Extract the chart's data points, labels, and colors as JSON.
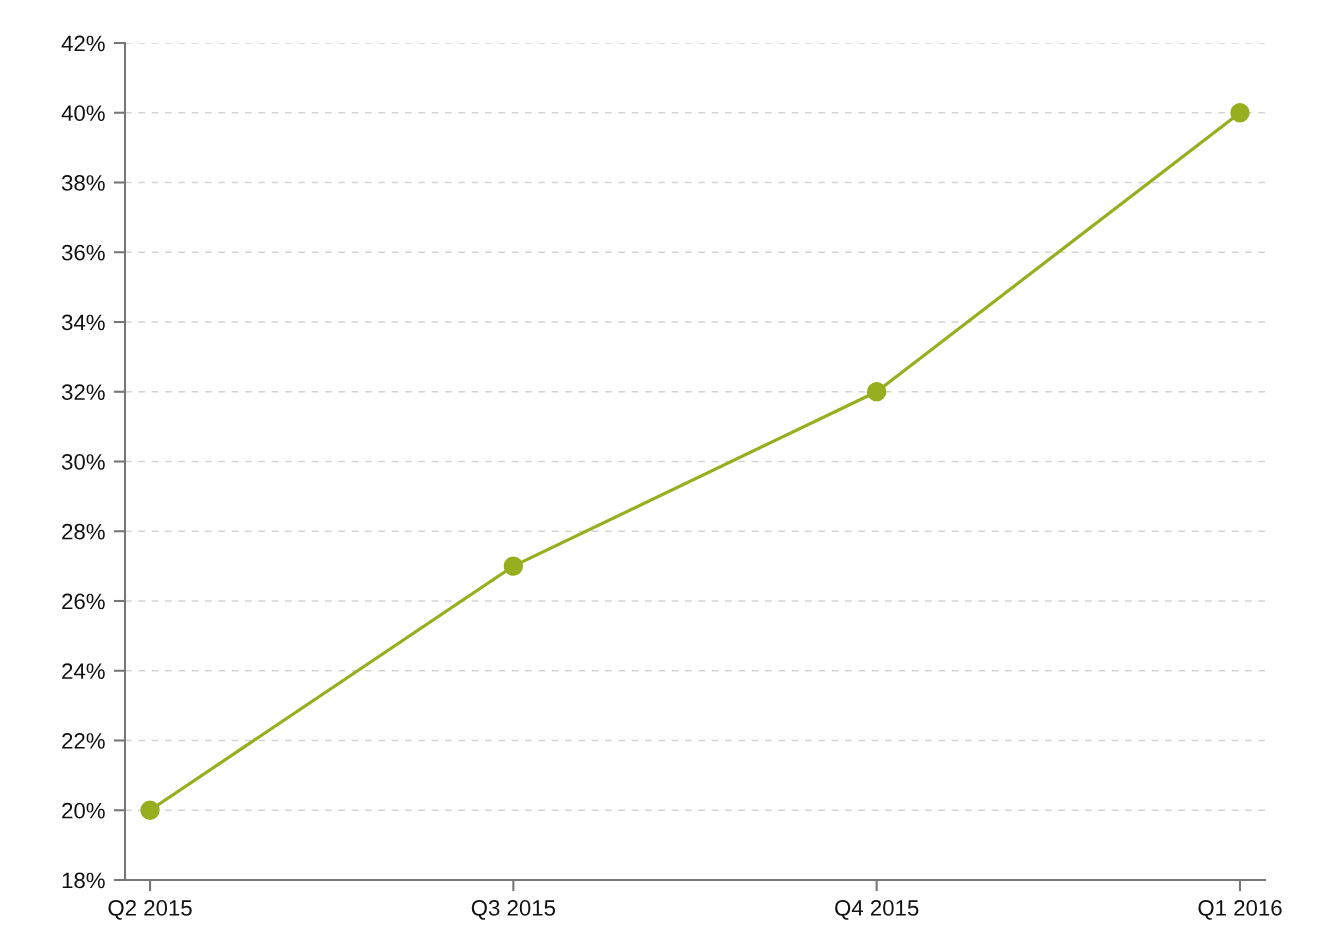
{
  "chart_data": {
    "type": "line",
    "categories": [
      "Q2 2015",
      "Q3 2015",
      "Q4 2015",
      "Q1 2016"
    ],
    "series": [
      {
        "color": "#97ae1e",
        "values": [
          20,
          27,
          32,
          40
        ]
      }
    ],
    "ylim": [
      18,
      42
    ],
    "yticks": [
      {
        "value": 18,
        "label": "18%"
      },
      {
        "value": 20,
        "label": "20%"
      },
      {
        "value": 22,
        "label": "22%"
      },
      {
        "value": 24,
        "label": "24%"
      },
      {
        "value": 26,
        "label": "26%"
      },
      {
        "value": 28,
        "label": "28%"
      },
      {
        "value": 30,
        "label": "30%"
      },
      {
        "value": 32,
        "label": "32%"
      },
      {
        "value": 34,
        "label": "34%"
      },
      {
        "value": 36,
        "label": "36%"
      },
      {
        "value": 38,
        "label": "38%"
      },
      {
        "value": 40,
        "label": "40%"
      },
      {
        "value": 42,
        "label": "42%"
      }
    ],
    "grid": "y",
    "marker": "circle",
    "line_style": "solid"
  }
}
